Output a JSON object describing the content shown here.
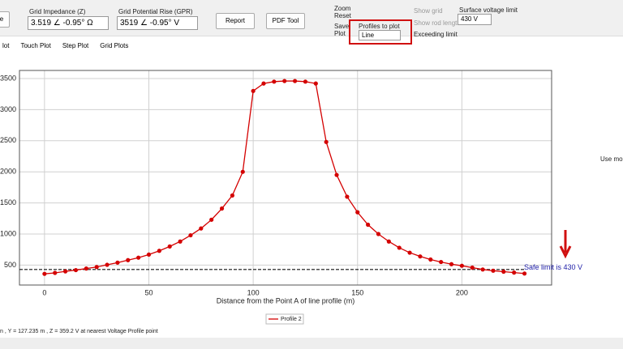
{
  "toolbar": {
    "left_button": "e",
    "impedance_label": "Grid Impedance (Z)",
    "impedance_value": "3.519 ∠ -0.95° Ω",
    "gpr_label": "Grid Potential Rise (GPR)",
    "gpr_value": "3519 ∠ -0.95° V",
    "report": "Report",
    "pdf": "PDF Tool",
    "zoom_reset": "Zoom Reset",
    "save_plot": "Save Plot",
    "profiles_label": "Profiles to plot",
    "profiles_value": "Line",
    "show_grid": "Show grid",
    "show_rod": "Show rod length",
    "exceeding": "Exceeding limit",
    "surface_label": "Surface voltage limit",
    "surface_value": "430 V"
  },
  "tabs": [
    "lot",
    "Touch Plot",
    "Step Plot",
    "Grid Plots"
  ],
  "side_note": "Use mou",
  "chart": {
    "type": "line",
    "x_label": "Distance from the Point A of line profile (m)",
    "xlim": [
      -12,
      243
    ],
    "ylim": [
      180,
      3630
    ],
    "xticks": [
      0,
      50,
      100,
      150,
      200
    ],
    "yticks": [
      500,
      1000,
      1500,
      2000,
      2500,
      3000,
      3500
    ],
    "grid": true,
    "series": [
      {
        "name": "Profile 2",
        "color": "#d40000",
        "x": [
          0,
          5,
          10,
          15,
          20,
          25,
          30,
          35,
          40,
          45,
          50,
          55,
          60,
          65,
          70,
          75,
          80,
          85,
          90,
          95,
          100,
          105,
          110,
          115,
          120,
          125,
          130,
          135,
          140,
          145,
          150,
          155,
          160,
          165,
          170,
          175,
          180,
          185,
          190,
          195,
          200,
          205,
          210,
          215,
          220,
          225,
          230
        ],
        "values": [
          360,
          375,
          400,
          420,
          445,
          470,
          505,
          540,
          580,
          620,
          670,
          730,
          800,
          880,
          980,
          1090,
          1230,
          1410,
          1620,
          2000,
          3300,
          3420,
          3450,
          3460,
          3460,
          3450,
          3420,
          2480,
          1950,
          1600,
          1350,
          1150,
          1000,
          880,
          780,
          700,
          640,
          590,
          550,
          515,
          490,
          460,
          430,
          410,
          395,
          380,
          365
        ]
      }
    ],
    "limit": {
      "value": 430,
      "label": "Safe limit is 430 V",
      "color": "#2020a8"
    }
  },
  "status": "n , Y = 127.235 m , Z = 359.2 V at nearest Voltage Profile point"
}
